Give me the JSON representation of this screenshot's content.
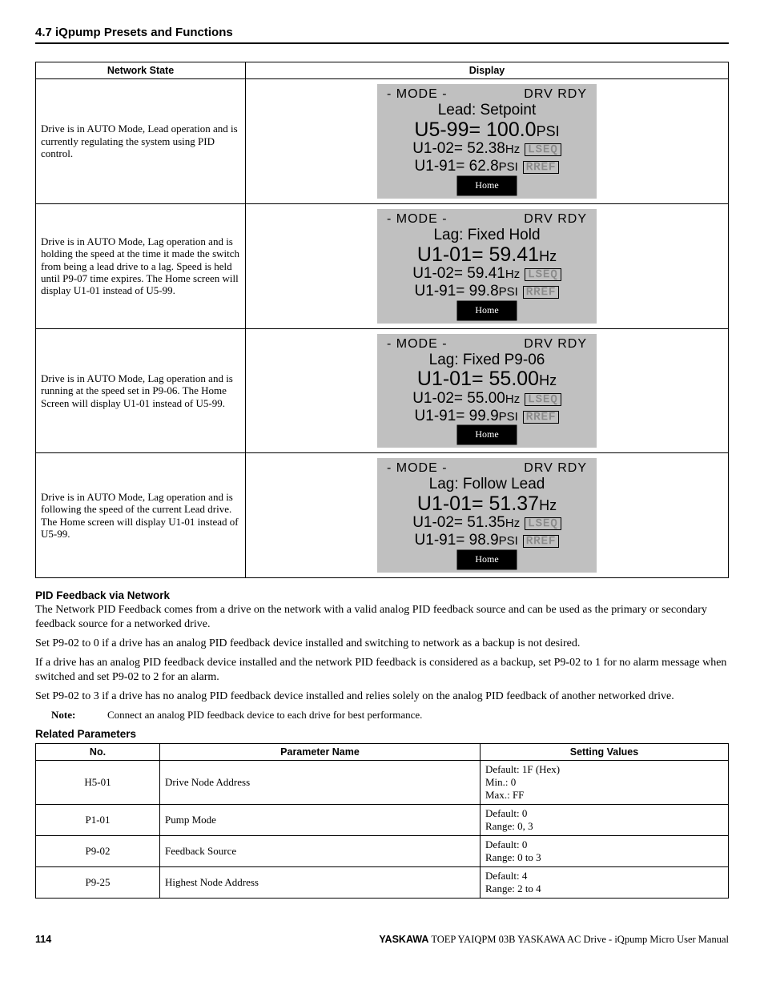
{
  "section_title": "4.7  iQpump Presets and Functions",
  "display_table": {
    "headers": [
      "Network State",
      "Display"
    ],
    "rows": [
      {
        "network_state": "Drive is in AUTO Mode, Lead operation and is currently regulating the system using PID control.",
        "lcd": {
          "mode": "- MODE -",
          "rdy": "DRV  RDY",
          "status": "Lead: Setpoint",
          "main_param": "U5-99=",
          "main_val": "100.0",
          "main_unit": "PSI",
          "sub1_param": "U1-02=",
          "sub1_val": "52.38",
          "sub1_unit": "Hz",
          "sub1_tag": "LSEQ",
          "sub2_param": "U1-91=",
          "sub2_val": "62.8",
          "sub2_unit": "PSI",
          "sub2_tag": "RREF",
          "home": "Home"
        }
      },
      {
        "network_state": "Drive is in AUTO Mode, Lag operation and is holding the speed at the time it made the switch from being a lead drive to a lag. Speed is held until P9-07 time expires. The Home screen will display U1-01 instead of U5-99.",
        "lcd": {
          "mode": "- MODE -",
          "rdy": "DRV  RDY",
          "status": "Lag: Fixed Hold",
          "main_param": "U1-01=",
          "main_val": "59.41",
          "main_unit": "Hz",
          "sub1_param": "U1-02=",
          "sub1_val": "59.41",
          "sub1_unit": "Hz",
          "sub1_tag": "LSEQ",
          "sub2_param": "U1-91=",
          "sub2_val": "99.8",
          "sub2_unit": "PSI",
          "sub2_tag": "RREF",
          "home": "Home"
        }
      },
      {
        "network_state": "Drive is in AUTO Mode, Lag operation and is running at the speed set in P9-06. The Home Screen will display U1-01 instead of U5-99.",
        "lcd": {
          "mode": "- MODE -",
          "rdy": "DRV  RDY",
          "status": "Lag: Fixed P9-06",
          "main_param": "U1-01=",
          "main_val": "55.00",
          "main_unit": "Hz",
          "sub1_param": "U1-02=",
          "sub1_val": "55.00",
          "sub1_unit": "Hz",
          "sub1_tag": "LSEQ",
          "sub2_param": "U1-91=",
          "sub2_val": "99.9",
          "sub2_unit": "PSI",
          "sub2_tag": "RREF",
          "home": "Home"
        }
      },
      {
        "network_state": "Drive is in AUTO Mode, Lag operation and is following the speed of the current Lead drive. The Home screen will display U1-01 instead of U5-99.",
        "lcd": {
          "mode": "- MODE -",
          "rdy": "DRV  RDY",
          "status": "Lag: Follow Lead",
          "main_param": "U1-01=",
          "main_val": "51.37",
          "main_unit": "Hz",
          "sub1_param": "U1-02=",
          "sub1_val": "51.35",
          "sub1_unit": "Hz",
          "sub1_tag": "LSEQ",
          "sub2_param": "U1-91=",
          "sub2_val": "98.9",
          "sub2_unit": "PSI",
          "sub2_tag": "RREF",
          "home": "Home"
        }
      }
    ]
  },
  "pid_heading": "PID Feedback via Network",
  "pid_p1": "The Network PID Feedback comes from a drive on the network with a valid analog PID feedback source and can be used as the primary or secondary feedback source for a networked drive.",
  "pid_p2": "Set P9-02 to 0 if a drive has an analog PID feedback device installed and switching to network as a backup is not desired.",
  "pid_p3": "If a drive has an analog PID feedback device installed and the network PID feedback is considered as a backup, set P9-02 to 1 for no alarm message when switched and set P9-02 to 2 for an alarm.",
  "pid_p4": "Set P9-02 to 3 if a drive has no analog PID feedback device installed and relies solely on the analog PID feedback of another networked drive.",
  "note_label": "Note:",
  "note_text": "Connect an analog PID feedback device to each drive for best performance.",
  "related_heading": "Related Parameters",
  "param_table": {
    "headers": [
      "No.",
      "Parameter Name",
      "Setting Values"
    ],
    "rows": [
      {
        "no": "H5-01",
        "name": "Drive Node Address",
        "values": "Default: 1F (Hex)\nMin.: 0\nMax.: FF"
      },
      {
        "no": "P1-01",
        "name": "Pump Mode",
        "values": "Default: 0\nRange: 0, 3"
      },
      {
        "no": "P9-02",
        "name": "Feedback Source",
        "values": "Default: 0\nRange: 0 to 3"
      },
      {
        "no": "P9-25",
        "name": "Highest Node Address",
        "values": "Default: 4\nRange: 2 to 4"
      }
    ]
  },
  "footer": {
    "page": "114",
    "brand": "YASKAWA",
    "ref": " TOEP YAIQPM 03B YASKAWA AC Drive - iQpump Micro User Manual"
  },
  "colors": {
    "lcd_bg": "#c0c0c0",
    "text": "#000000",
    "tag_stroke": "#8a8a8a"
  }
}
